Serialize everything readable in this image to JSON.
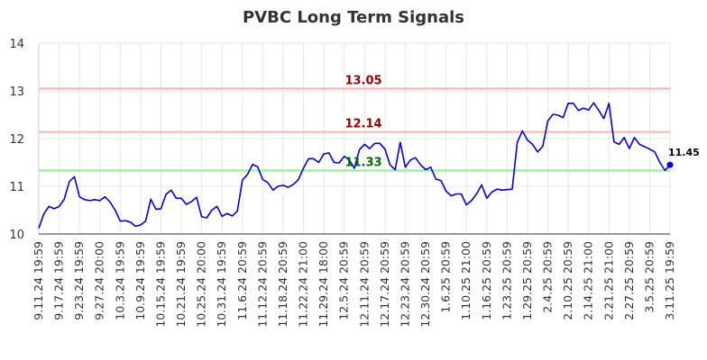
{
  "chart_data": {
    "type": "line",
    "title": "PVBC Long Term Signals",
    "xlabel": "",
    "ylabel": "",
    "ylim": [
      10,
      14
    ],
    "y_ticks": [
      "10",
      "11",
      "12",
      "13",
      "14"
    ],
    "x_ticks": [
      "9.11.24 19:59",
      "9.17.24 19:59",
      "9.23.24 19:59",
      "9.27.24 20:00",
      "10.3.24 19:59",
      "10.9.24 19:59",
      "10.15.24 19:59",
      "10.21.24 19:59",
      "10.25.24 20:00",
      "10.31.24 19:59",
      "11.6.24 20:59",
      "11.12.24 20:59",
      "11.18.24 20:59",
      "11.22.24 21:00",
      "11.29.24 18:00",
      "12.5.24 20:59",
      "12.11.24 20:59",
      "12.17.24 20:59",
      "12.23.24 20:59",
      "12.30.24 20:59",
      "1.6.25 20:59",
      "1.10.25 21:00",
      "1.16.25 20:59",
      "1.23.25 20:59",
      "1.29.25 20:59",
      "2.4.25 20:59",
      "2.10.25 20:59",
      "2.14.25 21:00",
      "2.21.25 21:00",
      "2.27.25 20:59",
      "3.5.25 20:59",
      "3.11.25 19:59"
    ],
    "grid": true,
    "series": [
      {
        "color": "#0000cc",
        "values": [
          10.12,
          10.42,
          10.58,
          10.53,
          10.58,
          10.73,
          11.1,
          11.2,
          10.78,
          10.72,
          10.7,
          10.72,
          10.7,
          10.78,
          10.67,
          10.5,
          10.27,
          10.28,
          10.25,
          10.16,
          10.19,
          10.27,
          10.73,
          10.52,
          10.53,
          10.83,
          10.92,
          10.75,
          10.75,
          10.62,
          10.68,
          10.77,
          10.36,
          10.34,
          10.5,
          10.58,
          10.37,
          10.43,
          10.38,
          10.48,
          11.13,
          11.25,
          11.46,
          11.41,
          11.14,
          11.08,
          10.92,
          11.0,
          11.02,
          10.98,
          11.04,
          11.14,
          11.38,
          11.58,
          11.58,
          11.5,
          11.68,
          11.7,
          11.5,
          11.49,
          11.63,
          11.55,
          11.38,
          11.77,
          11.88,
          11.79,
          11.9,
          11.9,
          11.78,
          11.45,
          11.35,
          11.92,
          11.4,
          11.55,
          11.6,
          11.45,
          11.35,
          11.4,
          11.15,
          11.12,
          10.9,
          10.8,
          10.84,
          10.84,
          10.61,
          10.7,
          10.84,
          11.03,
          10.75,
          10.88,
          10.94,
          10.92,
          10.93,
          10.94,
          11.92,
          12.16,
          11.97,
          11.88,
          11.72,
          11.84,
          12.37,
          12.51,
          12.49,
          12.44,
          12.74,
          12.74,
          12.59,
          12.64,
          12.6,
          12.75,
          12.59,
          12.42,
          12.74,
          11.93,
          11.88,
          12.02,
          11.79,
          12.02,
          11.88,
          11.83,
          11.78,
          11.72,
          11.5,
          11.33,
          11.45
        ]
      }
    ],
    "reference_lines": [
      {
        "value": 13.05,
        "label": "13.05",
        "color": "#ffb3b3",
        "label_color": "#8b0000"
      },
      {
        "value": 12.14,
        "label": "12.14",
        "color": "#ffb3b3",
        "label_color": "#8b0000"
      },
      {
        "value": 11.33,
        "label": "11.33",
        "color": "#90ee90",
        "label_color": "#006400"
      }
    ],
    "last_value_label": "11.45"
  }
}
